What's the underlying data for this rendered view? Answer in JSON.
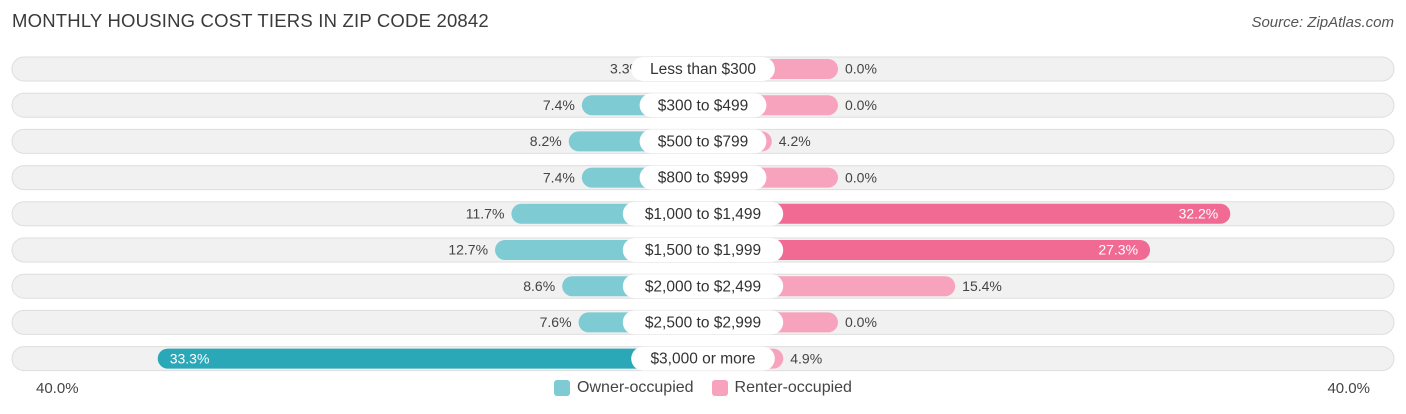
{
  "header": {
    "title": "MONTHLY HOUSING COST TIERS IN ZIP CODE 20842",
    "source": "Source: ZipAtlas.com"
  },
  "axis": {
    "left_label": "40.0%",
    "right_label": "40.0%"
  },
  "colors": {
    "owner": "#7ecbd3",
    "owner_strong": "#2aa8b8",
    "renter": "#f7a3bd",
    "renter_strong": "#f06a94",
    "row_bg": "#f1f1f1",
    "row_border": "#dedede"
  },
  "chart_data": {
    "type": "bar",
    "orientation": "horizontal-diverging",
    "title": "MONTHLY HOUSING COST TIERS IN ZIP CODE 20842",
    "categories": [
      "Less than $300",
      "$300 to $499",
      "$500 to $799",
      "$800 to $999",
      "$1,000 to $1,499",
      "$1,500 to $1,999",
      "$2,000 to $2,499",
      "$2,500 to $2,999",
      "$3,000 or more"
    ],
    "series": [
      {
        "name": "Owner-occupied",
        "values": [
          3.3,
          7.4,
          8.2,
          7.4,
          11.7,
          12.7,
          8.6,
          7.6,
          33.3
        ],
        "labels": [
          "3.3%",
          "7.4%",
          "8.2%",
          "7.4%",
          "11.7%",
          "12.7%",
          "8.6%",
          "7.6%",
          "33.3%"
        ]
      },
      {
        "name": "Renter-occupied",
        "values": [
          0.0,
          0.0,
          4.2,
          0.0,
          32.2,
          27.3,
          15.4,
          0.0,
          4.9
        ],
        "labels": [
          "0.0%",
          "0.0%",
          "4.2%",
          "0.0%",
          "32.2%",
          "27.3%",
          "15.4%",
          "0.0%",
          "4.9%"
        ]
      }
    ],
    "xlim": [
      -40,
      40
    ],
    "legend_position": "bottom-center"
  }
}
